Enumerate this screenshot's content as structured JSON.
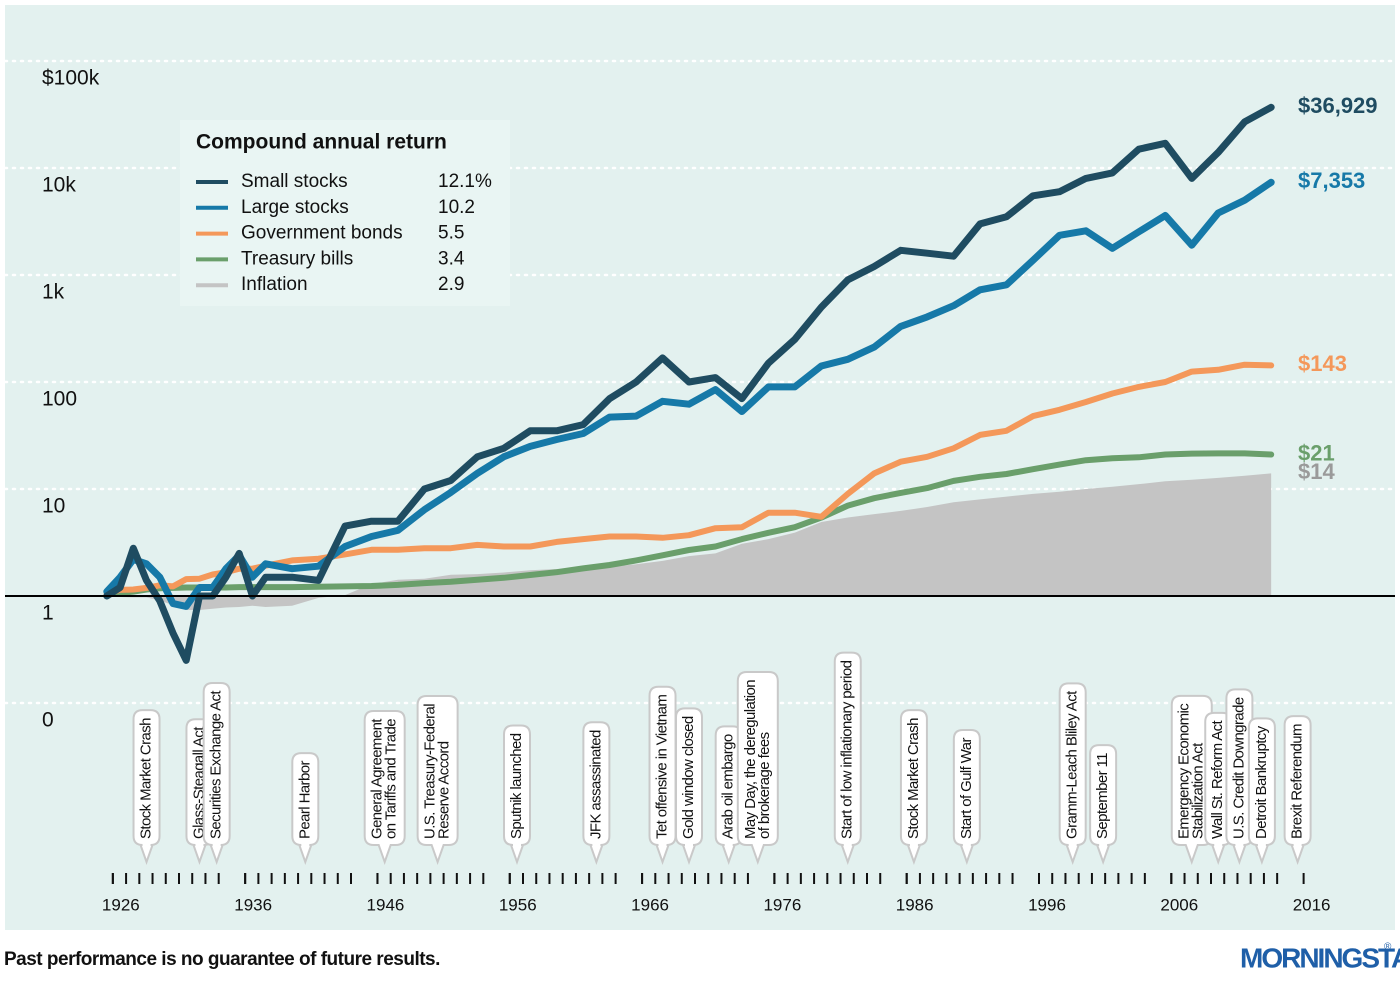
{
  "chart_data": {
    "type": "line",
    "log_scale": true,
    "legend_title": "Compound annual return",
    "footnote": "Past performance is no guarantee of future results.",
    "brand": "MORNINGSTAR",
    "brand_mark": "®",
    "xlim": [
      1918,
      2022
    ],
    "xticks": [
      1926,
      1936,
      1946,
      1956,
      1966,
      1976,
      1986,
      1996,
      2006,
      2016
    ],
    "ylim": [
      0.07,
      200000
    ],
    "yticks": [
      {
        "value": 100000,
        "label": "$100k"
      },
      {
        "value": 10000,
        "label": "10k"
      },
      {
        "value": 1000,
        "label": "1k"
      },
      100,
      10,
      1,
      {
        "value": 0.1,
        "label": "0"
      }
    ],
    "baseline": 1,
    "x": [
      1926,
      1927,
      1928,
      1929,
      1930,
      1931,
      1932,
      1933,
      1934,
      1935,
      1936,
      1937,
      1938,
      1940,
      1942,
      1944,
      1946,
      1948,
      1950,
      1952,
      1954,
      1956,
      1958,
      1960,
      1962,
      1964,
      1966,
      1968,
      1970,
      1972,
      1974,
      1976,
      1978,
      1980,
      1982,
      1984,
      1986,
      1988,
      1990,
      1992,
      1994,
      1996,
      1998,
      2000,
      2002,
      2004,
      2006,
      2008,
      2010,
      2012,
      2014
    ],
    "series": [
      {
        "name": "Inflation",
        "color": "#c4c4c4",
        "label_color": "#9a9a9a",
        "area": true,
        "cagr": "2.9",
        "end_label": "$14",
        "values": [
          1.0,
          0.98,
          0.97,
          0.97,
          0.91,
          0.82,
          0.74,
          0.74,
          0.76,
          0.78,
          0.79,
          0.81,
          0.79,
          0.81,
          0.96,
          1.02,
          1.29,
          1.42,
          1.45,
          1.58,
          1.6,
          1.66,
          1.74,
          1.79,
          1.82,
          1.87,
          1.98,
          2.13,
          2.36,
          2.5,
          3.08,
          3.4,
          3.91,
          4.92,
          5.42,
          5.82,
          6.24,
          6.78,
          7.51,
          8.0,
          8.49,
          9.0,
          9.43,
          10.0,
          10.5,
          11.1,
          11.8,
          12.2,
          12.7,
          13.3,
          14
        ]
      },
      {
        "name": "Treasury bills",
        "color": "#6a9f6b",
        "cagr": "3.4",
        "end_label": "$21",
        "values": [
          1.03,
          1.07,
          1.1,
          1.15,
          1.18,
          1.19,
          1.2,
          1.2,
          1.2,
          1.2,
          1.21,
          1.21,
          1.21,
          1.21,
          1.22,
          1.23,
          1.24,
          1.27,
          1.32,
          1.36,
          1.42,
          1.48,
          1.57,
          1.67,
          1.81,
          1.95,
          2.15,
          2.4,
          2.69,
          2.9,
          3.4,
          3.9,
          4.4,
          5.4,
          7.0,
          8.2,
          9.2,
          10.2,
          11.9,
          13.0,
          13.8,
          15.3,
          16.9,
          18.6,
          19.4,
          19.8,
          21.0,
          21.4,
          21.5,
          21.5,
          21
        ]
      },
      {
        "name": "Government bonds",
        "color": "#f4985a",
        "cagr": "5.5",
        "end_label": "$143",
        "values": [
          1.05,
          1.14,
          1.15,
          1.19,
          1.26,
          1.23,
          1.44,
          1.45,
          1.59,
          1.67,
          1.8,
          1.8,
          1.92,
          2.15,
          2.23,
          2.45,
          2.7,
          2.7,
          2.8,
          2.8,
          3.0,
          2.9,
          2.9,
          3.2,
          3.4,
          3.6,
          3.6,
          3.5,
          3.7,
          4.3,
          4.4,
          6,
          6,
          5.5,
          9,
          14,
          18,
          20,
          24,
          32,
          35,
          48,
          55,
          65,
          78,
          90,
          100,
          125,
          130,
          145,
          143
        ]
      },
      {
        "name": "Large stocks",
        "color": "#1679a8",
        "cagr": "10.2",
        "end_label": "$7,353",
        "values": [
          1.1,
          1.5,
          2.2,
          2.0,
          1.5,
          0.85,
          0.8,
          1.2,
          1.2,
          1.8,
          2.4,
          1.5,
          2.0,
          1.8,
          1.9,
          2.9,
          3.6,
          4.1,
          6.4,
          9.3,
          14,
          20,
          25,
          29,
          33,
          47,
          48,
          66,
          62,
          85,
          53,
          90,
          90,
          141,
          163,
          212,
          331,
          406,
          517,
          727,
          810,
          1371,
          2351,
          2587,
          1776,
          2535,
          3600,
          1900,
          3800,
          5000,
          7353
        ]
      },
      {
        "name": "Small stocks",
        "color": "#1f4c61",
        "cagr": "12.1%",
        "end_label": "$36,929",
        "values": [
          1.0,
          1.2,
          2.8,
          1.4,
          0.9,
          0.45,
          0.25,
          1.0,
          1.0,
          1.5,
          2.5,
          1.0,
          1.5,
          1.5,
          1.4,
          4.5,
          5,
          5,
          10,
          12,
          20,
          24,
          35,
          35,
          40,
          70,
          100,
          168,
          100,
          110,
          70,
          150,
          250,
          500,
          900,
          1200,
          1700,
          1600,
          1500,
          3000,
          3500,
          5500,
          6000,
          8000,
          9000,
          15000,
          17000,
          8000,
          14000,
          27000,
          36929
        ]
      }
    ],
    "events": [
      {
        "year": 1929,
        "lines": [
          "Stock Market Crash"
        ]
      },
      {
        "year": 1933,
        "lines": [
          "Glass-Steagall Act"
        ]
      },
      {
        "year": 1934.3,
        "lines": [
          "Securities Exchange Act"
        ]
      },
      {
        "year": 1941,
        "lines": [
          "Pearl Harbor"
        ]
      },
      {
        "year": 1947,
        "lines": [
          "General Agreement",
          "on Tariffs and Trade"
        ]
      },
      {
        "year": 1951,
        "lines": [
          "U.S. Treasury-Federal",
          "Reserve Accord"
        ]
      },
      {
        "year": 1957,
        "lines": [
          "Sputnik launched"
        ]
      },
      {
        "year": 1963,
        "lines": [
          "JFK assassinated"
        ]
      },
      {
        "year": 1968,
        "lines": [
          "Tet offensive in Vietnam"
        ]
      },
      {
        "year": 1970,
        "lines": [
          "Gold window closed"
        ]
      },
      {
        "year": 1973,
        "lines": [
          "Arab oil embargo"
        ]
      },
      {
        "year": 1975.2,
        "lines": [
          "May Day, the deregulation",
          "of brokerage fees"
        ]
      },
      {
        "year": 1982,
        "lines": [
          "Start of low inflationary period"
        ]
      },
      {
        "year": 1987,
        "lines": [
          "Stock Market Crash"
        ]
      },
      {
        "year": 1991,
        "lines": [
          "Start of Gulf War"
        ]
      },
      {
        "year": 1999,
        "lines": [
          "Gramm-Leach Bliley Act"
        ]
      },
      {
        "year": 2001.3,
        "lines": [
          "September 11"
        ]
      },
      {
        "year": 2008,
        "lines": [
          "Emergency Economic",
          "Stabilization Act"
        ]
      },
      {
        "year": 2010,
        "lines": [
          "Wall St. Reform Act"
        ]
      },
      {
        "year": 2011.6,
        "lines": [
          "U.S. Credit Downgrade"
        ]
      },
      {
        "year": 2013.3,
        "lines": [
          "Detroit Bankruptcy"
        ]
      },
      {
        "year": 2016,
        "lines": [
          "Brexit Referendum"
        ]
      }
    ]
  }
}
